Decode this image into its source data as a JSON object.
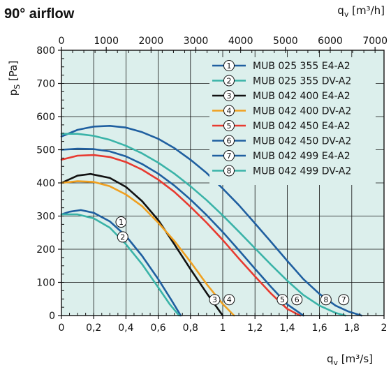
{
  "title": "90° airflow",
  "chart_data": {
    "type": "line",
    "title": "90° airflow",
    "x_bottom": {
      "label_main": "q",
      "label_sub": "v",
      "label_unit": " [m³/s]",
      "range": [
        0,
        2
      ],
      "ticks": [
        0,
        0.2,
        0.4,
        0.6,
        0.8,
        1,
        1.2,
        1.4,
        1.6,
        1.8,
        2
      ],
      "tick_labels": [
        "0",
        "0,2",
        "0,4",
        "0,6",
        "0,8",
        "1",
        "1,2",
        "1,4",
        "1,6",
        "1,8",
        "2"
      ]
    },
    "x_top": {
      "label_main": "q",
      "label_sub": "v",
      "label_unit": " [m³/h]",
      "range": [
        0,
        7200
      ],
      "ticks": [
        0,
        1000,
        2000,
        3000,
        4000,
        5000,
        6000,
        7000
      ],
      "tick_labels": [
        "0",
        "1000",
        "2000",
        "3000",
        "4000",
        "5000",
        "6000",
        "7000"
      ]
    },
    "y": {
      "label_main": "p",
      "label_sub": "S",
      "label_unit": " [Pa]",
      "range": [
        0,
        800
      ],
      "ticks": [
        0,
        100,
        200,
        300,
        400,
        500,
        600,
        700,
        800
      ],
      "tick_labels": [
        "0",
        "100",
        "200",
        "300",
        "400",
        "500",
        "600",
        "700",
        "800"
      ]
    },
    "grid": true,
    "legend_position": "top-right",
    "series": [
      {
        "id": "1",
        "name": "MUB 025 355 E4-A2",
        "color": "#1f5fa0",
        "points": [
          [
            0,
            305
          ],
          [
            0.05,
            313
          ],
          [
            0.12,
            318
          ],
          [
            0.2,
            310
          ],
          [
            0.3,
            284
          ],
          [
            0.4,
            240
          ],
          [
            0.5,
            180
          ],
          [
            0.6,
            110
          ],
          [
            0.68,
            48
          ],
          [
            0.74,
            0
          ]
        ],
        "marker_at": [
          0.37,
          282
        ]
      },
      {
        "id": "2",
        "name": "MUB 025 355 DV-A2",
        "color": "#3ab3a8",
        "points": [
          [
            0,
            305
          ],
          [
            0.1,
            305
          ],
          [
            0.2,
            293
          ],
          [
            0.3,
            265
          ],
          [
            0.4,
            215
          ],
          [
            0.5,
            155
          ],
          [
            0.6,
            85
          ],
          [
            0.67,
            35
          ],
          [
            0.73,
            0
          ]
        ],
        "marker_at": [
          0.38,
          237
        ]
      },
      {
        "id": "3",
        "name": "MUB 042 400 E4-A2",
        "color": "#111111",
        "points": [
          [
            0,
            400
          ],
          [
            0.1,
            422
          ],
          [
            0.18,
            427
          ],
          [
            0.3,
            415
          ],
          [
            0.4,
            388
          ],
          [
            0.5,
            345
          ],
          [
            0.6,
            288
          ],
          [
            0.7,
            215
          ],
          [
            0.8,
            140
          ],
          [
            0.9,
            68
          ],
          [
            1.0,
            0
          ]
        ],
        "marker_at": [
          0.95,
          48
        ]
      },
      {
        "id": "4",
        "name": "MUB 042 400 DV-A2",
        "color": "#f0a020",
        "points": [
          [
            0,
            400
          ],
          [
            0.1,
            405
          ],
          [
            0.2,
            403
          ],
          [
            0.3,
            390
          ],
          [
            0.4,
            365
          ],
          [
            0.5,
            330
          ],
          [
            0.6,
            280
          ],
          [
            0.7,
            225
          ],
          [
            0.8,
            162
          ],
          [
            0.9,
            95
          ],
          [
            1.0,
            35
          ],
          [
            1.07,
            0
          ]
        ],
        "marker_at": [
          1.04,
          48
        ]
      },
      {
        "id": "5",
        "name": "MUB 042 450 E4-A2",
        "color": "#e83a30",
        "points": [
          [
            0,
            470
          ],
          [
            0.1,
            482
          ],
          [
            0.2,
            484
          ],
          [
            0.3,
            478
          ],
          [
            0.4,
            463
          ],
          [
            0.5,
            440
          ],
          [
            0.6,
            410
          ],
          [
            0.7,
            373
          ],
          [
            0.8,
            328
          ],
          [
            0.9,
            280
          ],
          [
            1.0,
            228
          ],
          [
            1.1,
            172
          ],
          [
            1.2,
            118
          ],
          [
            1.3,
            66
          ],
          [
            1.4,
            20
          ],
          [
            1.48,
            0
          ]
        ],
        "marker_at": [
          1.37,
          48
        ]
      },
      {
        "id": "6",
        "name": "MUB 042 450 DV-A2",
        "color": "#1f5fa0",
        "points": [
          [
            0,
            500
          ],
          [
            0.1,
            503
          ],
          [
            0.2,
            502
          ],
          [
            0.3,
            495
          ],
          [
            0.4,
            480
          ],
          [
            0.5,
            457
          ],
          [
            0.6,
            428
          ],
          [
            0.7,
            392
          ],
          [
            0.8,
            350
          ],
          [
            0.9,
            303
          ],
          [
            1.0,
            252
          ],
          [
            1.1,
            197
          ],
          [
            1.2,
            141
          ],
          [
            1.3,
            86
          ],
          [
            1.4,
            34
          ],
          [
            1.5,
            0
          ]
        ],
        "marker_at": [
          1.46,
          48
        ]
      },
      {
        "id": "7",
        "name": "MUB 042 499 E4-A2",
        "color": "#1f5fa0",
        "points": [
          [
            0,
            540
          ],
          [
            0.1,
            560
          ],
          [
            0.2,
            570
          ],
          [
            0.3,
            572
          ],
          [
            0.4,
            567
          ],
          [
            0.5,
            553
          ],
          [
            0.6,
            533
          ],
          [
            0.7,
            505
          ],
          [
            0.8,
            470
          ],
          [
            0.9,
            430
          ],
          [
            1.0,
            383
          ],
          [
            1.1,
            333
          ],
          [
            1.2,
            278
          ],
          [
            1.3,
            222
          ],
          [
            1.4,
            165
          ],
          [
            1.5,
            110
          ],
          [
            1.6,
            65
          ],
          [
            1.7,
            30
          ],
          [
            1.78,
            12
          ],
          [
            1.86,
            0
          ]
        ],
        "marker_at": [
          1.75,
          48
        ]
      },
      {
        "id": "8",
        "name": "MUB 042 499 DV-A2",
        "color": "#3ab3a8",
        "points": [
          [
            0,
            548
          ],
          [
            0.1,
            548
          ],
          [
            0.2,
            542
          ],
          [
            0.3,
            530
          ],
          [
            0.4,
            512
          ],
          [
            0.5,
            489
          ],
          [
            0.6,
            461
          ],
          [
            0.7,
            428
          ],
          [
            0.8,
            390
          ],
          [
            0.9,
            348
          ],
          [
            1.0,
            302
          ],
          [
            1.1,
            253
          ],
          [
            1.2,
            203
          ],
          [
            1.3,
            153
          ],
          [
            1.4,
            105
          ],
          [
            1.5,
            62
          ],
          [
            1.6,
            30
          ],
          [
            1.7,
            8
          ],
          [
            1.76,
            0
          ]
        ],
        "marker_at": [
          1.64,
          48
        ]
      }
    ]
  }
}
